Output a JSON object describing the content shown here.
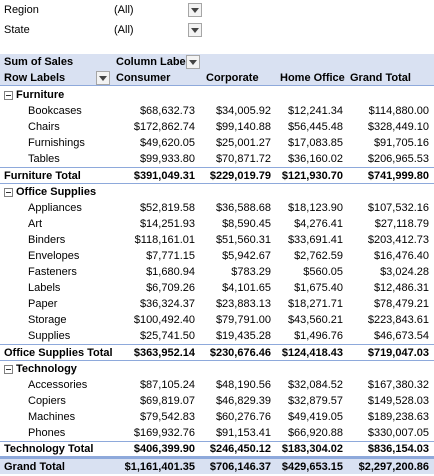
{
  "filters": [
    {
      "label": "Region",
      "value": "(All)"
    },
    {
      "label": "State",
      "value": "(All)"
    }
  ],
  "pivot": {
    "values_caption": "Sum of Sales",
    "columns_caption": "Column Labels",
    "rows_caption": "Row Labels",
    "columns": [
      "Consumer",
      "Corporate",
      "Home Office",
      "Grand Total"
    ],
    "groups": [
      {
        "name": "Furniture",
        "items": [
          {
            "label": "Bookcases",
            "values": [
              "$68,632.73",
              "$34,005.92",
              "$12,241.34",
              "$114,880.00"
            ]
          },
          {
            "label": "Chairs",
            "values": [
              "$172,862.74",
              "$99,140.88",
              "$56,445.48",
              "$328,449.10"
            ]
          },
          {
            "label": "Furnishings",
            "values": [
              "$49,620.05",
              "$25,001.27",
              "$17,083.85",
              "$91,705.16"
            ]
          },
          {
            "label": "Tables",
            "values": [
              "$99,933.80",
              "$70,871.72",
              "$36,160.02",
              "$206,965.53"
            ]
          }
        ],
        "total_label": "Furniture Total",
        "total": [
          "$391,049.31",
          "$229,019.79",
          "$121,930.70",
          "$741,999.80"
        ]
      },
      {
        "name": "Office Supplies",
        "items": [
          {
            "label": "Appliances",
            "values": [
              "$52,819.58",
              "$36,588.68",
              "$18,123.90",
              "$107,532.16"
            ]
          },
          {
            "label": "Art",
            "values": [
              "$14,251.93",
              "$8,590.45",
              "$4,276.41",
              "$27,118.79"
            ]
          },
          {
            "label": "Binders",
            "values": [
              "$118,161.01",
              "$51,560.31",
              "$33,691.41",
              "$203,412.73"
            ]
          },
          {
            "label": "Envelopes",
            "values": [
              "$7,771.15",
              "$5,942.67",
              "$2,762.59",
              "$16,476.40"
            ]
          },
          {
            "label": "Fasteners",
            "values": [
              "$1,680.94",
              "$783.29",
              "$560.05",
              "$3,024.28"
            ]
          },
          {
            "label": "Labels",
            "values": [
              "$6,709.26",
              "$4,101.65",
              "$1,675.40",
              "$12,486.31"
            ]
          },
          {
            "label": "Paper",
            "values": [
              "$36,324.37",
              "$23,883.13",
              "$18,271.71",
              "$78,479.21"
            ]
          },
          {
            "label": "Storage",
            "values": [
              "$100,492.40",
              "$79,791.00",
              "$43,560.21",
              "$223,843.61"
            ]
          },
          {
            "label": "Supplies",
            "values": [
              "$25,741.50",
              "$19,435.28",
              "$1,496.76",
              "$46,673.54"
            ]
          }
        ],
        "total_label": "Office Supplies Total",
        "total": [
          "$363,952.14",
          "$230,676.46",
          "$124,418.43",
          "$719,047.03"
        ]
      },
      {
        "name": "Technology",
        "items": [
          {
            "label": "Accessories",
            "values": [
              "$87,105.24",
              "$48,190.56",
              "$32,084.52",
              "$167,380.32"
            ]
          },
          {
            "label": "Copiers",
            "values": [
              "$69,819.07",
              "$46,829.39",
              "$32,879.57",
              "$149,528.03"
            ]
          },
          {
            "label": "Machines",
            "values": [
              "$79,542.83",
              "$60,276.76",
              "$49,419.05",
              "$189,238.63"
            ]
          },
          {
            "label": "Phones",
            "values": [
              "$169,932.76",
              "$91,153.41",
              "$66,920.88",
              "$330,007.05"
            ]
          }
        ],
        "total_label": "Technology Total",
        "total": [
          "$406,399.90",
          "$246,450.12",
          "$183,304.02",
          "$836,154.03"
        ]
      }
    ],
    "grand_total_label": "Grand Total",
    "grand_total": [
      "$1,161,401.35",
      "$706,146.37",
      "$429,653.15",
      "$2,297,200.86"
    ]
  }
}
